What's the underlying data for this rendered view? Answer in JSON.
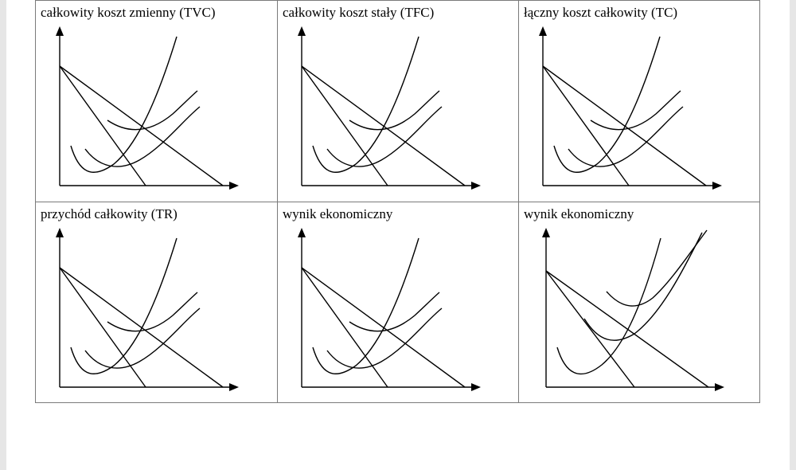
{
  "panels": [
    {
      "title": "całkowity koszt zmienny (TVC)",
      "variant": "standard"
    },
    {
      "title": "całkowity koszt stały (TFC)",
      "variant": "standard"
    },
    {
      "title": "łączny koszt całkowity (TC)",
      "variant": "standard"
    },
    {
      "title": "przychód całkowity (TR)",
      "variant": "standard"
    },
    {
      "title": "wynik ekonomiczny",
      "variant": "standard"
    },
    {
      "title": "wynik ekonomiczny",
      "variant": "alternate"
    }
  ]
}
